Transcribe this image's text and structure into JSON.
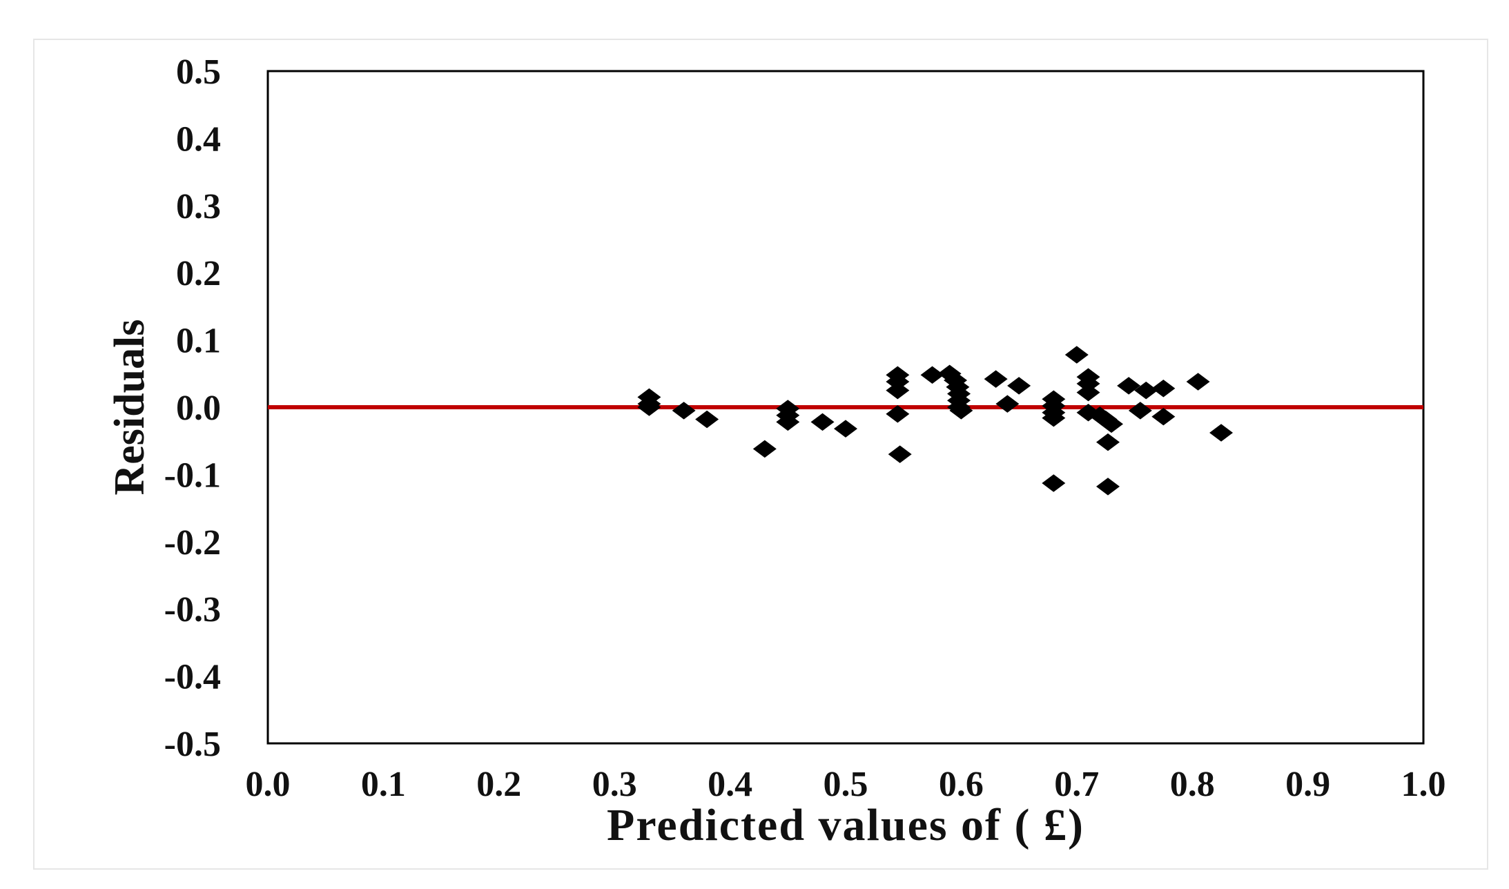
{
  "chart_data": {
    "type": "scatter",
    "xlabel": "Predicted values of ( £)",
    "ylabel": "Residuals",
    "xlim": [
      0.0,
      1.0
    ],
    "ylim": [
      -0.5,
      0.5
    ],
    "x_ticks": [
      "0.0",
      "0.1",
      "0.2",
      "0.3",
      "0.4",
      "0.5",
      "0.6",
      "0.7",
      "0.8",
      "0.9",
      "1.0"
    ],
    "y_ticks": [
      "0.5",
      "0.4",
      "0.3",
      "0.2",
      "0.1",
      "0.0",
      "-0.1",
      "-0.2",
      "-0.3",
      "-0.4",
      "-0.5"
    ],
    "x_tick_values": [
      0.0,
      0.1,
      0.2,
      0.3,
      0.4,
      0.5,
      0.6,
      0.7,
      0.8,
      0.9,
      1.0
    ],
    "y_tick_values": [
      0.5,
      0.4,
      0.3,
      0.2,
      0.1,
      0.0,
      -0.1,
      -0.2,
      -0.3,
      -0.4,
      -0.5
    ],
    "grid": false,
    "reference_line": {
      "y": 0.0,
      "color": "#c00000"
    },
    "marker": {
      "shape": "diamond",
      "color": "#000000"
    },
    "points": [
      {
        "x": 0.33,
        "y": 0.015
      },
      {
        "x": 0.33,
        "y": 0.005
      },
      {
        "x": 0.33,
        "y": 0.0
      },
      {
        "x": 0.36,
        "y": -0.005
      },
      {
        "x": 0.38,
        "y": -0.018
      },
      {
        "x": 0.43,
        "y": -0.062
      },
      {
        "x": 0.45,
        "y": -0.002
      },
      {
        "x": 0.45,
        "y": -0.012
      },
      {
        "x": 0.45,
        "y": -0.022
      },
      {
        "x": 0.48,
        "y": -0.022
      },
      {
        "x": 0.5,
        "y": -0.032
      },
      {
        "x": 0.545,
        "y": 0.048
      },
      {
        "x": 0.545,
        "y": 0.038
      },
      {
        "x": 0.545,
        "y": 0.025
      },
      {
        "x": 0.545,
        "y": -0.01
      },
      {
        "x": 0.547,
        "y": -0.07
      },
      {
        "x": 0.575,
        "y": 0.048
      },
      {
        "x": 0.59,
        "y": 0.05
      },
      {
        "x": 0.595,
        "y": 0.04
      },
      {
        "x": 0.597,
        "y": 0.03
      },
      {
        "x": 0.598,
        "y": 0.02
      },
      {
        "x": 0.598,
        "y": 0.01
      },
      {
        "x": 0.598,
        "y": 0.0
      },
      {
        "x": 0.6,
        "y": -0.005
      },
      {
        "x": 0.63,
        "y": 0.042
      },
      {
        "x": 0.64,
        "y": 0.005
      },
      {
        "x": 0.65,
        "y": 0.032
      },
      {
        "x": 0.68,
        "y": 0.012
      },
      {
        "x": 0.68,
        "y": 0.002
      },
      {
        "x": 0.68,
        "y": -0.008
      },
      {
        "x": 0.68,
        "y": -0.016
      },
      {
        "x": 0.68,
        "y": -0.113
      },
      {
        "x": 0.7,
        "y": 0.078
      },
      {
        "x": 0.71,
        "y": 0.045
      },
      {
        "x": 0.71,
        "y": 0.035
      },
      {
        "x": 0.71,
        "y": 0.022
      },
      {
        "x": 0.71,
        "y": -0.008
      },
      {
        "x": 0.72,
        "y": -0.012
      },
      {
        "x": 0.725,
        "y": -0.018
      },
      {
        "x": 0.73,
        "y": -0.025
      },
      {
        "x": 0.727,
        "y": -0.052
      },
      {
        "x": 0.727,
        "y": -0.118
      },
      {
        "x": 0.745,
        "y": 0.032
      },
      {
        "x": 0.755,
        "y": -0.005
      },
      {
        "x": 0.76,
        "y": 0.025
      },
      {
        "x": 0.775,
        "y": 0.028
      },
      {
        "x": 0.775,
        "y": -0.014
      },
      {
        "x": 0.805,
        "y": 0.038
      },
      {
        "x": 0.825,
        "y": -0.038
      }
    ]
  }
}
